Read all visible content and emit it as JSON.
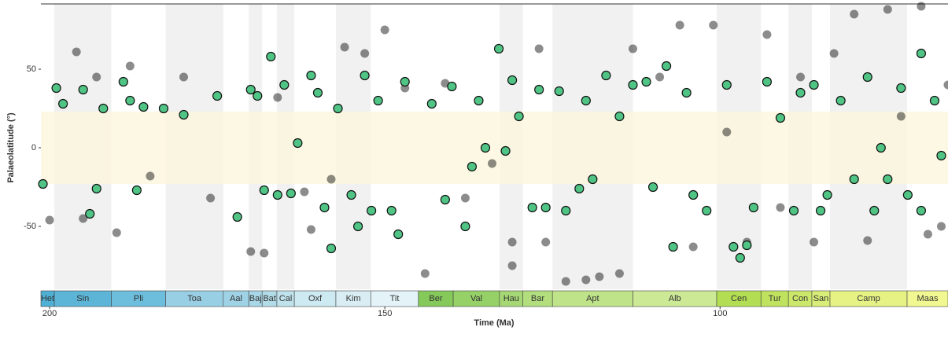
{
  "chart_data": {
    "type": "scatter",
    "xlabel": "Time (Ma)",
    "ylabel": "Palaeolatitude (°)",
    "xlim": [
      201.3,
      66
    ],
    "ylim": [
      -90,
      91.5
    ],
    "xticks": [
      200,
      150,
      100
    ],
    "yticks": [
      -50,
      0,
      50
    ],
    "band": [
      -23,
      23
    ],
    "band_color": "#fdf6dc",
    "stages": [
      {
        "name": "Het",
        "start": 201.3,
        "end": 199.3,
        "color": "#4fb0d6",
        "shaded": false
      },
      {
        "name": "Sin",
        "start": 199.3,
        "end": 190.8,
        "color": "#5cb4d6",
        "shaded": true
      },
      {
        "name": "Pli",
        "start": 190.8,
        "end": 182.7,
        "color": "#6cbedc",
        "shaded": false
      },
      {
        "name": "Toa",
        "start": 182.7,
        "end": 174.1,
        "color": "#99cfe4",
        "shaded": true
      },
      {
        "name": "Aal",
        "start": 174.1,
        "end": 170.3,
        "color": "#9fd2e5",
        "shaded": false
      },
      {
        "name": "Baj",
        "start": 170.3,
        "end": 168.3,
        "color": "#a8d7e7",
        "shaded": true
      },
      {
        "name": "Bat",
        "start": 168.3,
        "end": 166.1,
        "color": "#b3dce9",
        "shaded": false
      },
      {
        "name": "Cal",
        "start": 166.1,
        "end": 163.5,
        "color": "#bfe2ec",
        "shaded": true
      },
      {
        "name": "Oxf",
        "start": 163.5,
        "end": 157.3,
        "color": "#cde9f1",
        "shaded": false
      },
      {
        "name": "Kim",
        "start": 157.3,
        "end": 152.1,
        "color": "#d9eef4",
        "shaded": true
      },
      {
        "name": "Tit",
        "start": 152.1,
        "end": 145,
        "color": "#e3f3f8",
        "shaded": false
      },
      {
        "name": "Ber",
        "start": 145,
        "end": 139.8,
        "color": "#84c95a",
        "shaded": false
      },
      {
        "name": "Val",
        "start": 139.8,
        "end": 132.9,
        "color": "#96d167",
        "shaded": false
      },
      {
        "name": "Hau",
        "start": 132.9,
        "end": 129.4,
        "color": "#a5d874",
        "shaded": true
      },
      {
        "name": "Bar",
        "start": 129.4,
        "end": 125,
        "color": "#b2de7e",
        "shaded": false
      },
      {
        "name": "Apt",
        "start": 125,
        "end": 113,
        "color": "#bfe389",
        "shaded": true
      },
      {
        "name": "Alb",
        "start": 113,
        "end": 100.5,
        "color": "#cce996",
        "shaded": false
      },
      {
        "name": "Cen",
        "start": 100.5,
        "end": 93.9,
        "color": "#b3de53",
        "shaded": true
      },
      {
        "name": "Tur",
        "start": 93.9,
        "end": 89.8,
        "color": "#bfe35e",
        "shaded": false
      },
      {
        "name": "Con",
        "start": 89.8,
        "end": 86.3,
        "color": "#cce86a",
        "shaded": true
      },
      {
        "name": "San",
        "start": 86.3,
        "end": 83.6,
        "color": "#d9ee78",
        "shaded": false
      },
      {
        "name": "Camp",
        "start": 83.6,
        "end": 72.1,
        "color": "#e6f284",
        "shaded": true
      },
      {
        "name": "Maas",
        "start": 72.1,
        "end": 66,
        "color": "#f2f891",
        "shaded": false
      }
    ],
    "series": [
      {
        "color": "#000000",
        "opacity": 0.45,
        "stroke": "none",
        "x": [
          200,
          196,
          195,
          193,
          190,
          188,
          185,
          180,
          176,
          170,
          168,
          166,
          162,
          161,
          158,
          156,
          153,
          150,
          147,
          144,
          141,
          138,
          134,
          131,
          131,
          127,
          126,
          123,
          120,
          118,
          115,
          113,
          109,
          106,
          104,
          101,
          99,
          96,
          93,
          91,
          88,
          86,
          83,
          80,
          78,
          75,
          73,
          70,
          69,
          67,
          66
        ],
        "values": [
          -46,
          61,
          -45,
          45,
          -54,
          52,
          -18,
          45,
          -32,
          -66,
          -67,
          32,
          -28,
          -52,
          -20,
          64,
          60,
          75,
          38,
          -80,
          41,
          -32,
          -10,
          -75,
          -60,
          63,
          -60,
          -85,
          -84,
          -82,
          -80,
          63,
          45,
          78,
          -63,
          78,
          10,
          -60,
          72,
          -38,
          45,
          -60,
          60,
          85,
          -59,
          88,
          20,
          90,
          -55,
          -50,
          40
        ]
      },
      {
        "color": "#4fc484",
        "opacity": 1,
        "stroke": "#111111",
        "x": [
          201,
          199,
          198,
          195,
          194,
          193,
          192,
          189,
          188,
          187,
          186,
          183,
          180,
          175,
          172,
          170,
          169,
          168,
          167,
          166,
          165,
          164,
          163,
          161,
          160,
          159,
          158,
          157,
          155,
          154,
          153,
          152,
          151,
          149,
          148,
          147,
          143,
          141,
          140,
          138,
          137,
          136,
          135,
          133,
          132,
          131,
          130,
          128,
          127,
          126,
          124,
          123,
          121,
          120,
          119,
          117,
          115,
          113,
          111,
          110,
          108,
          107,
          105,
          104,
          102,
          99,
          98,
          97,
          96,
          95,
          93,
          91,
          89,
          88,
          86,
          85,
          84,
          82,
          80,
          78,
          77,
          76,
          75,
          73,
          72,
          70,
          70,
          68,
          67
        ],
        "values": [
          -23,
          38,
          28,
          37,
          -42,
          -26,
          25,
          42,
          30,
          -27,
          26,
          25,
          21,
          33,
          -44,
          37,
          33,
          -27,
          58,
          -30,
          40,
          -29,
          3,
          46,
          35,
          -38,
          -64,
          25,
          -30,
          -50,
          46,
          -40,
          30,
          -40,
          -55,
          42,
          28,
          -33,
          39,
          -50,
          -12,
          30,
          0,
          63,
          -2,
          43,
          20,
          -38,
          37,
          -38,
          36,
          -40,
          -26,
          30,
          -20,
          46,
          20,
          40,
          42,
          -25,
          52,
          -63,
          35,
          -30,
          -40,
          40,
          -63,
          -70,
          -62,
          -38,
          42,
          19,
          -40,
          35,
          40,
          -40,
          -30,
          30,
          -20,
          45,
          -40,
          0,
          -20,
          38,
          -30,
          60,
          -40,
          30,
          -5
        ]
      }
    ]
  }
}
